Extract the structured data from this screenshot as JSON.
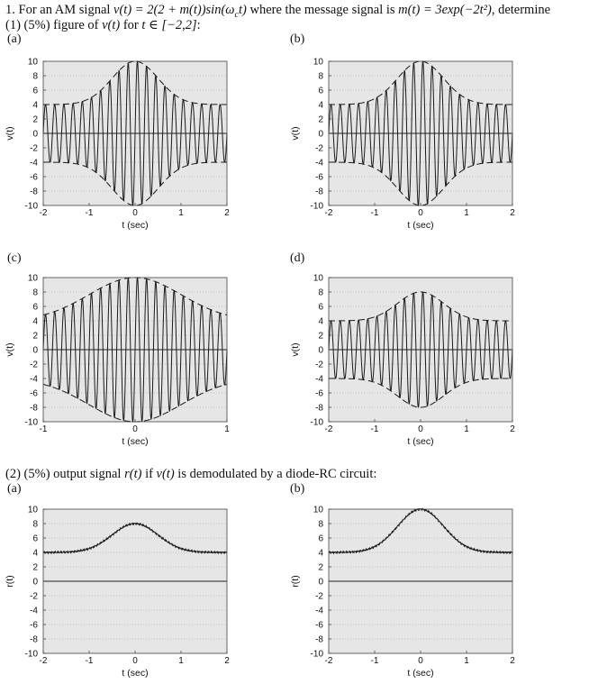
{
  "question": {
    "line1_pre": "1. For an AM signal ",
    "line1_formula": "v(t) = 2(2 + m(t))sin(ω",
    "line1_sub": "c",
    "line1_formula2": "t)",
    "line1_mid": " where the message signal is ",
    "line1_msg": "m(t) = 3exp(−2t²)",
    "line1_post": ", determine",
    "line2": "(1) (5%) figure of ",
    "line2_formula": "v(t)",
    "line2_mid": " for ",
    "line2_range": "t ∈ [−2,2]",
    "line2_post": ":",
    "part2_pre": "(2) (5%) output signal ",
    "part2_r": "r(t)",
    "part2_mid": " if ",
    "part2_v": "v(t)",
    "part2_post": " is demodulated by a diode-RC circuit:"
  },
  "panel_labels": {
    "p1": "(a)",
    "p2": "(b)",
    "p3": "(c)",
    "p4": "(d)",
    "p5": "(a)",
    "p6": "(b)"
  },
  "chart_data": [
    {
      "id": "1a",
      "type": "line",
      "title": "",
      "xlabel": "t (sec)",
      "ylabel": "v(t)",
      "xlim": [
        -2,
        2
      ],
      "ylim": [
        -10,
        10
      ],
      "xticks": [
        "-2",
        "-1",
        "0",
        "1",
        "2"
      ],
      "yticks": [
        "10",
        "8",
        "6",
        "4",
        "2",
        "0",
        "-2",
        "-4",
        "-6",
        "-8",
        "-10"
      ],
      "grid": "dotted",
      "series": [
        {
          "name": "carrier",
          "formula": "v(t)=2(2+3exp(-2t^2))sin(wc t)",
          "cycles_per_sec": 5
        },
        {
          "name": "envelope",
          "style": "dashed",
          "formula": "±2(2+3exp(-2t^2))"
        }
      ]
    },
    {
      "id": "1b",
      "type": "line",
      "title": "",
      "xlabel": "t (sec)",
      "ylabel": "v(t)",
      "xlim": [
        -2,
        2
      ],
      "ylim": [
        -10,
        10
      ],
      "xticks": [
        "-2",
        "-1",
        "0",
        "1",
        "2"
      ],
      "yticks": [
        "10",
        "8",
        "6",
        "4",
        "2",
        "0",
        "-2",
        "-4",
        "-6",
        "-8",
        "-10"
      ],
      "grid": "dotted",
      "series": [
        {
          "name": "carrier",
          "formula": "v(t)=2(2+3exp(-2t^2))sin(wc t)",
          "cycles_per_sec": 5
        },
        {
          "name": "envelope",
          "style": "dashed",
          "formula": "±2(2+3exp(-2t^2))"
        }
      ]
    },
    {
      "id": "1c",
      "type": "line",
      "title": "",
      "xlabel": "t (sec)",
      "ylabel": "v(t)",
      "xlim": [
        -1,
        1
      ],
      "ylim": [
        -10,
        10
      ],
      "xticks": [
        "-1",
        "0",
        "1"
      ],
      "yticks": [
        "10",
        "8",
        "6",
        "4",
        "2",
        "0",
        "-2",
        "-4",
        "-6",
        "-8",
        "-10"
      ],
      "grid": "dotted",
      "series": [
        {
          "name": "carrier",
          "formula": "v(t)=2(2+3exp(-2t^2))sin(wc t)",
          "cycles_per_sec": 10
        },
        {
          "name": "envelope",
          "style": "dashed",
          "formula": "±2(2+3exp(-2t^2))"
        }
      ]
    },
    {
      "id": "1d",
      "type": "line",
      "title": "",
      "xlabel": "t (sec)",
      "ylabel": "v(t)",
      "xlim": [
        -2,
        2
      ],
      "ylim": [
        -10,
        10
      ],
      "xticks": [
        "-2",
        "-1",
        "0",
        "1",
        "2"
      ],
      "yticks": [
        "10",
        "8",
        "6",
        "4",
        "2",
        "0",
        "-2",
        "-4",
        "-6",
        "-8",
        "-10"
      ],
      "grid": "dotted",
      "series": [
        {
          "name": "carrier",
          "formula": "v(t)=(4+4exp(-2t^2))sin(wc t)",
          "cycles_per_sec": 5
        },
        {
          "name": "envelope",
          "style": "dashed",
          "formula": "±(4+4exp(-2t^2))"
        }
      ]
    },
    {
      "id": "2a",
      "type": "line",
      "title": "",
      "xlabel": "t (sec)",
      "ylabel": "r(t)",
      "xlim": [
        -2,
        2
      ],
      "ylim": [
        -10,
        10
      ],
      "xticks": [
        "-2",
        "-1",
        "0",
        "1",
        "2"
      ],
      "yticks": [
        "10",
        "8",
        "6",
        "4",
        "2",
        "0",
        "-2",
        "-4",
        "-6",
        "-8",
        "-10"
      ],
      "grid": "dotted",
      "series": [
        {
          "name": "r(t)",
          "formula": "r(t)=4+4exp(-2t^2)",
          "baseline": 4,
          "peak": 8
        }
      ]
    },
    {
      "id": "2b",
      "type": "line",
      "title": "",
      "xlabel": "t (sec)",
      "ylabel": "r(t)",
      "xlim": [
        -2,
        2
      ],
      "ylim": [
        -10,
        10
      ],
      "xticks": [
        "-2",
        "-1",
        "0",
        "1",
        "2"
      ],
      "yticks": [
        "10",
        "8",
        "6",
        "4",
        "2",
        "0",
        "-2",
        "-4",
        "-6",
        "-8",
        "-10"
      ],
      "grid": "dotted",
      "series": [
        {
          "name": "r(t)",
          "formula": "r(t)=4+6exp(-2t^2)",
          "baseline": 4,
          "peak": 10
        }
      ]
    }
  ]
}
